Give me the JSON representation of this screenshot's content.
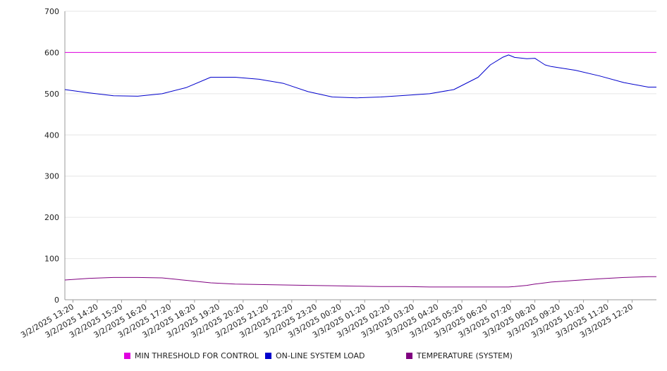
{
  "chart_data": {
    "type": "line",
    "title": "",
    "xlabel": "",
    "ylabel": "",
    "ylim": [
      0,
      700
    ],
    "yticks": [
      "0",
      "100",
      "200",
      "300",
      "400",
      "500",
      "600",
      "700"
    ],
    "grid": true,
    "legend_position": "bottom",
    "x_start": "3/2/2025 13:00",
    "x_end": "3/3/2025 13:20",
    "x_tick_labels": [
      "3/2/2025 13:20",
      "3/2/2025 14:20",
      "3/2/2025 15:20",
      "3/2/2025 16:20",
      "3/2/2025 17:20",
      "3/2/2025 18:20",
      "3/2/2025 19:20",
      "3/2/2025 20:20",
      "3/2/2025 21:20",
      "3/2/2025 22:20",
      "3/2/2025 23:20",
      "3/3/2025 00:20",
      "3/3/2025 01:20",
      "3/3/2025 02:20",
      "3/3/2025 03:20",
      "3/3/2025 04:20",
      "3/3/2025 05:20",
      "3/3/2025 06:20",
      "3/3/2025 07:20",
      "3/3/2025 08:20",
      "3/3/2025 09:20",
      "3/3/2025 10:20",
      "3/3/2025 11:20",
      "3/3/2025 12:20"
    ],
    "x": [
      "3/2/2025 13:00",
      "3/2/2025 14:00",
      "3/2/2025 15:00",
      "3/2/2025 16:00",
      "3/2/2025 17:00",
      "3/2/2025 18:00",
      "3/2/2025 19:00",
      "3/2/2025 20:00",
      "3/2/2025 21:00",
      "3/2/2025 22:00",
      "3/2/2025 23:00",
      "3/3/2025 00:00",
      "3/3/2025 01:00",
      "3/3/2025 02:00",
      "3/3/2025 03:00",
      "3/3/2025 04:00",
      "3/3/2025 05:00",
      "3/3/2025 06:00",
      "3/3/2025 06:30",
      "3/3/2025 07:00",
      "3/3/2025 07:15",
      "3/3/2025 07:30",
      "3/3/2025 08:00",
      "3/3/2025 08:20",
      "3/3/2025 08:45",
      "3/3/2025 09:00",
      "3/3/2025 10:00",
      "3/3/2025 11:00",
      "3/3/2025 12:00",
      "3/3/2025 13:00",
      "3/3/2025 13:20"
    ],
    "series": [
      {
        "name": "MIN THRESHOLD FOR CONTROL",
        "color": "#e000e0",
        "values": [
          600,
          600,
          600,
          600,
          600,
          600,
          600,
          600,
          600,
          600,
          600,
          600,
          600,
          600,
          600,
          600,
          600,
          600,
          600,
          600,
          600,
          600,
          600,
          600,
          600,
          600,
          600,
          600,
          600,
          600,
          600
        ]
      },
      {
        "name": "ON-LINE SYSTEM LOAD",
        "color": "#0000cc",
        "values": [
          510,
          502,
          495,
          494,
          500,
          515,
          540,
          540,
          535,
          525,
          505,
          492,
          490,
          492,
          496,
          500,
          510,
          540,
          570,
          588,
          594,
          588,
          585,
          586,
          570,
          566,
          557,
          543,
          527,
          516,
          516
        ]
      },
      {
        "name": "TEMPERATURE (SYSTEM)",
        "color": "#800080",
        "values": [
          48,
          52,
          54,
          54,
          53,
          47,
          41,
          38,
          37,
          36,
          35,
          34,
          33,
          32,
          32,
          31,
          31,
          31,
          31,
          31,
          31,
          32,
          35,
          38,
          41,
          43,
          47,
          51,
          54,
          56,
          56
        ]
      }
    ]
  }
}
